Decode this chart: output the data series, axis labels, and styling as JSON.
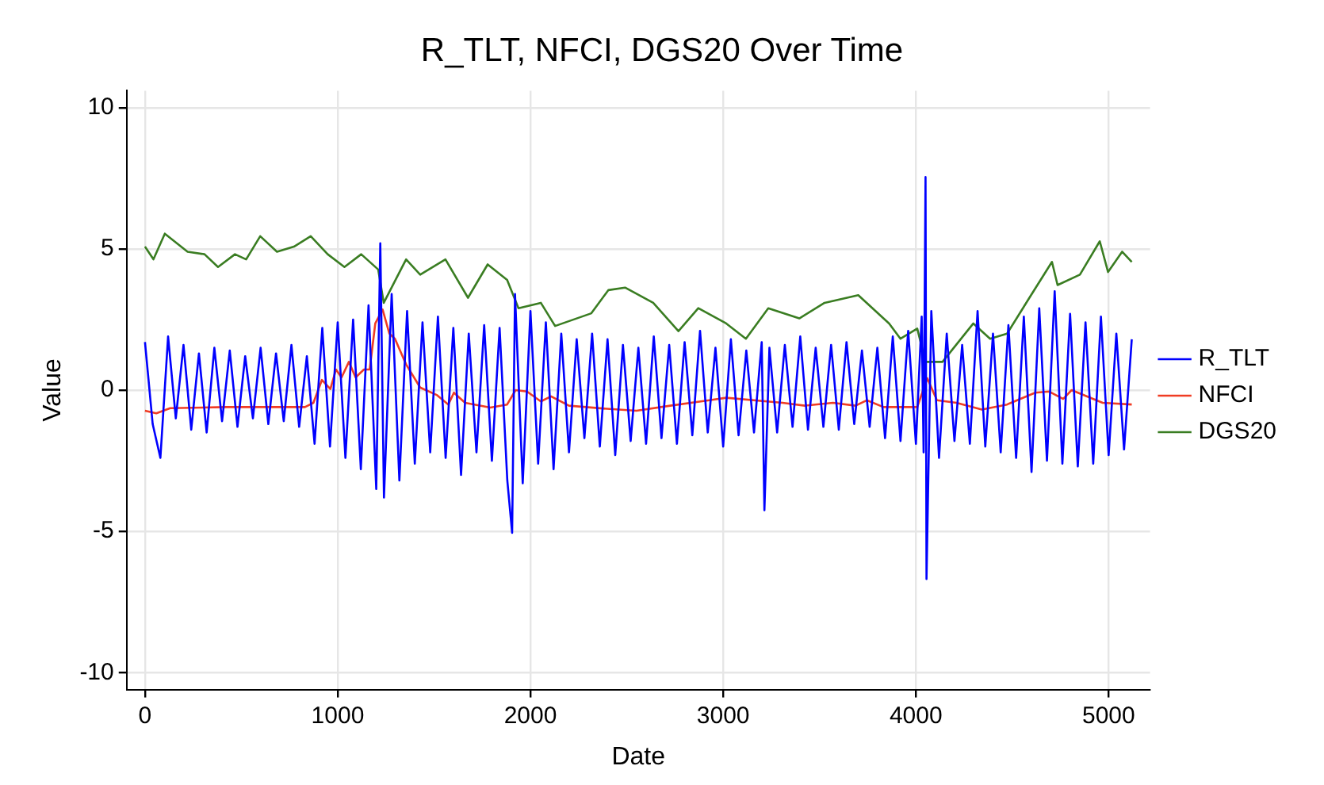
{
  "chart_data": {
    "type": "line",
    "title": "R_TLT, NFCI, DGS20 Over Time",
    "xlabel": "Date",
    "ylabel": "Value",
    "xlim": [
      -95,
      5215
    ],
    "ylim": [
      -10.6,
      10.6
    ],
    "xticks": [
      0,
      1000,
      2000,
      3000,
      4000,
      5000
    ],
    "yticks": [
      -10,
      -5,
      0,
      5,
      10
    ],
    "grid": true,
    "legend": "right",
    "marker": "none",
    "line_style": "solid",
    "series": [
      {
        "name": "R_TLT",
        "color": "#0000ff",
        "x": [
          0,
          40,
          80,
          120,
          160,
          200,
          240,
          280,
          320,
          360,
          400,
          440,
          480,
          520,
          560,
          600,
          640,
          680,
          720,
          760,
          800,
          840,
          880,
          920,
          960,
          1000,
          1040,
          1080,
          1120,
          1160,
          1200,
          1221,
          1240,
          1280,
          1320,
          1360,
          1400,
          1440,
          1480,
          1520,
          1560,
          1600,
          1640,
          1680,
          1720,
          1760,
          1800,
          1840,
          1880,
          1905,
          1920,
          1960,
          2000,
          2040,
          2080,
          2120,
          2160,
          2200,
          2240,
          2280,
          2320,
          2360,
          2400,
          2440,
          2480,
          2520,
          2560,
          2600,
          2640,
          2680,
          2720,
          2760,
          2800,
          2840,
          2880,
          2920,
          2960,
          3000,
          3040,
          3080,
          3120,
          3160,
          3200,
          3214,
          3240,
          3280,
          3320,
          3360,
          3400,
          3440,
          3480,
          3520,
          3560,
          3600,
          3640,
          3680,
          3720,
          3760,
          3800,
          3840,
          3880,
          3920,
          3960,
          4000,
          4030,
          4040,
          4050,
          4055,
          4080,
          4120,
          4160,
          4200,
          4240,
          4280,
          4320,
          4360,
          4400,
          4440,
          4480,
          4520,
          4560,
          4600,
          4640,
          4680,
          4720,
          4760,
          4800,
          4840,
          4880,
          4920,
          4960,
          5000,
          5040,
          5080,
          5120
        ],
        "values": [
          1.7,
          -1.2,
          -2.4,
          1.9,
          -1.0,
          1.6,
          -1.4,
          1.3,
          -1.5,
          1.5,
          -1.1,
          1.4,
          -1.3,
          1.2,
          -1.0,
          1.5,
          -1.2,
          1.3,
          -1.1,
          1.6,
          -1.3,
          1.2,
          -1.9,
          2.2,
          -2.0,
          2.4,
          -2.4,
          2.5,
          -2.8,
          3.0,
          -3.5,
          5.2,
          -3.8,
          3.4,
          -3.2,
          2.8,
          -2.6,
          2.4,
          -2.2,
          2.6,
          -2.4,
          2.2,
          -3.0,
          2.0,
          -2.2,
          2.3,
          -2.5,
          2.2,
          -3.2,
          -5.05,
          3.4,
          -3.3,
          2.8,
          -2.6,
          2.4,
          -2.8,
          2.0,
          -2.2,
          1.8,
          -1.7,
          2.0,
          -2.0,
          1.8,
          -2.3,
          1.6,
          -1.8,
          1.5,
          -1.9,
          1.9,
          -1.7,
          1.6,
          -1.9,
          1.7,
          -1.6,
          2.1,
          -1.5,
          1.5,
          -2.0,
          1.8,
          -1.6,
          1.4,
          -1.5,
          1.7,
          -4.25,
          1.5,
          -1.5,
          1.6,
          -1.3,
          1.9,
          -1.4,
          1.5,
          -1.3,
          1.6,
          -1.4,
          1.7,
          -1.2,
          1.4,
          -1.3,
          1.5,
          -1.7,
          1.9,
          -1.8,
          2.1,
          -1.9,
          2.6,
          -2.2,
          7.54,
          -6.69,
          2.8,
          -2.4,
          2.0,
          -1.8,
          1.6,
          -1.9,
          2.8,
          -2.0,
          2.0,
          -2.2,
          2.3,
          -2.4,
          2.6,
          -2.9,
          2.9,
          -2.5,
          3.5,
          -2.6,
          2.7,
          -2.7,
          2.4,
          -2.6,
          2.6,
          -2.3,
          2.0,
          -2.1,
          1.8
        ]
      },
      {
        "name": "NFCI",
        "color": "#f03c24",
        "x": [
          0,
          59,
          131,
          423,
          656,
          830,
          874,
          918,
          962,
          991,
          1020,
          1058,
          1093,
          1136,
          1166,
          1195,
          1233,
          1268,
          1297,
          1355,
          1428,
          1516,
          1574,
          1603,
          1661,
          1792,
          1879,
          1923,
          1982,
          2054,
          2107,
          2200,
          2375,
          2550,
          2725,
          2928,
          3016,
          3308,
          3424,
          3570,
          3687,
          3745,
          3832,
          4007,
          4059,
          4109,
          4211,
          4342,
          4473,
          4619,
          4692,
          4764,
          4808,
          4969,
          5120
        ],
        "values": [
          -0.73,
          -0.82,
          -0.64,
          -0.6,
          -0.6,
          -0.6,
          -0.45,
          0.36,
          0.04,
          0.73,
          0.45,
          1.0,
          0.45,
          0.73,
          0.73,
          2.36,
          2.85,
          2.0,
          1.82,
          0.91,
          0.09,
          -0.18,
          -0.51,
          -0.09,
          -0.45,
          -0.62,
          -0.51,
          0.0,
          -0.05,
          -0.4,
          -0.22,
          -0.55,
          -0.65,
          -0.73,
          -0.55,
          -0.36,
          -0.27,
          -0.45,
          -0.55,
          -0.45,
          -0.55,
          -0.36,
          -0.6,
          -0.6,
          0.42,
          -0.36,
          -0.45,
          -0.69,
          -0.51,
          -0.09,
          -0.05,
          -0.31,
          0.0,
          -0.45,
          -0.51
        ]
      },
      {
        "name": "DGS20",
        "color": "#3a7d22",
        "x": [
          0,
          44,
          103,
          221,
          309,
          379,
          467,
          525,
          598,
          685,
          773,
          860,
          948,
          1035,
          1122,
          1210,
          1239,
          1355,
          1428,
          1559,
          1676,
          1778,
          1879,
          1938,
          2054,
          2128,
          2316,
          2404,
          2491,
          2637,
          2768,
          2871,
          3016,
          3118,
          3234,
          3395,
          3526,
          3701,
          3861,
          3920,
          4007,
          4050,
          4138,
          4298,
          4385,
          4473,
          4589,
          4706,
          4735,
          4851,
          4954,
          4997,
          5070,
          5120
        ],
        "values": [
          5.08,
          4.63,
          5.54,
          4.9,
          4.81,
          4.36,
          4.81,
          4.63,
          5.45,
          4.9,
          5.08,
          5.45,
          4.81,
          4.36,
          4.81,
          4.27,
          3.09,
          4.63,
          4.09,
          4.63,
          3.27,
          4.45,
          3.9,
          2.9,
          3.09,
          2.27,
          2.72,
          3.54,
          3.63,
          3.09,
          2.09,
          2.9,
          2.36,
          1.82,
          2.9,
          2.54,
          3.09,
          3.36,
          2.36,
          1.82,
          2.18,
          1.0,
          1.0,
          2.36,
          1.82,
          2.0,
          3.27,
          4.54,
          3.72,
          4.09,
          5.27,
          4.18,
          4.9,
          4.54
        ]
      }
    ]
  }
}
